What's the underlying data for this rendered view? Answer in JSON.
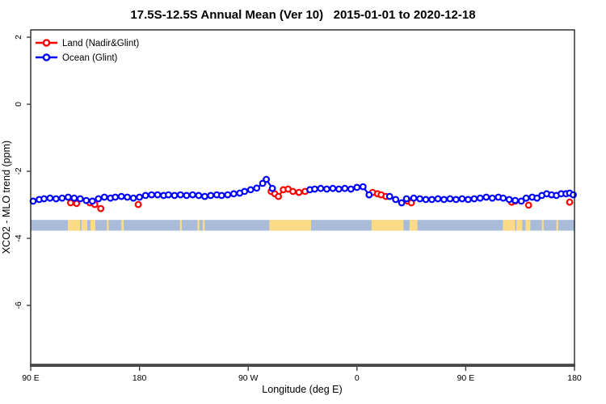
{
  "chart_data": {
    "type": "line",
    "title": "17.5S-12.5S Annual Mean (Ver 10)   2015-01-01 to 2020-12-18",
    "xlabel": "Longitude (deg E)",
    "ylabel": "XCO2 - MLO trend (ppm)",
    "x_axis": {
      "range": [
        90,
        540
      ],
      "ticks": [
        90,
        180,
        270,
        360,
        450,
        540
      ],
      "tick_labels": [
        "90 E",
        "180",
        "90 W",
        "0",
        "90 E",
        "180"
      ],
      "note": "longitude axis wraps: 90E to 180 to 90W to 0 to 90E to 180"
    },
    "y_axis": {
      "range": [
        -7.8,
        2.2
      ],
      "ticks": [
        2,
        0,
        -2,
        -4,
        -6
      ],
      "tick_labels": [
        "2",
        "0",
        "-2",
        "-4",
        "-6"
      ]
    },
    "grid": false,
    "legend_position": "top-left",
    "legend": {
      "items": [
        {
          "label": "Land (Nadir&Glint)",
          "color": "#ff0000"
        },
        {
          "label": "Ocean (Glint)",
          "color": "#0000ff"
        }
      ]
    },
    "series": [
      {
        "name": "Land (Nadir&Glint)",
        "color": "#ff0000",
        "groups": [
          [
            [
              123,
              -2.94
            ],
            [
              128,
              -2.96
            ]
          ],
          [
            [
              139,
              -2.94
            ],
            [
              143,
              -2.99
            ],
            [
              148,
              -3.11
            ]
          ],
          [
            [
              179,
              -2.99
            ]
          ],
          [
            [
              289,
              -2.6
            ],
            [
              292,
              -2.67
            ],
            [
              295,
              -2.75
            ],
            [
              299,
              -2.55
            ],
            [
              303,
              -2.53
            ],
            [
              307,
              -2.6
            ],
            [
              312,
              -2.63
            ],
            [
              317,
              -2.6
            ]
          ],
          [
            [
              373,
              -2.63
            ],
            [
              377,
              -2.67
            ],
            [
              380,
              -2.7
            ],
            [
              384,
              -2.75
            ]
          ],
          [
            [
              402,
              -2.89
            ],
            [
              405,
              -2.94
            ]
          ],
          [
            [
              488,
              -2.92
            ],
            [
              491,
              -2.89
            ]
          ],
          [
            [
              502,
              -3.01
            ]
          ],
          [
            [
              536,
              -2.92
            ]
          ]
        ]
      },
      {
        "name": "Ocean (Glint)",
        "color": "#0000ff",
        "groups": [
          [
            [
              92,
              -2.89
            ],
            [
              97,
              -2.84
            ],
            [
              101,
              -2.82
            ],
            [
              106,
              -2.8
            ],
            [
              111,
              -2.82
            ],
            [
              116,
              -2.8
            ],
            [
              121,
              -2.77
            ],
            [
              126,
              -2.8
            ],
            [
              131,
              -2.82
            ],
            [
              136,
              -2.87
            ],
            [
              141,
              -2.89
            ],
            [
              146,
              -2.82
            ],
            [
              151,
              -2.77
            ],
            [
              156,
              -2.8
            ],
            [
              160,
              -2.77
            ],
            [
              165,
              -2.75
            ],
            [
              170,
              -2.77
            ],
            [
              175,
              -2.8
            ],
            [
              180,
              -2.77
            ],
            [
              185,
              -2.72
            ],
            [
              190,
              -2.7
            ],
            [
              195,
              -2.7
            ],
            [
              200,
              -2.72
            ],
            [
              204,
              -2.7
            ],
            [
              209,
              -2.72
            ],
            [
              214,
              -2.7
            ],
            [
              219,
              -2.72
            ],
            [
              224,
              -2.7
            ],
            [
              229,
              -2.72
            ],
            [
              234,
              -2.75
            ],
            [
              239,
              -2.72
            ],
            [
              244,
              -2.7
            ],
            [
              248,
              -2.72
            ],
            [
              253,
              -2.7
            ],
            [
              258,
              -2.67
            ],
            [
              263,
              -2.65
            ],
            [
              267,
              -2.6
            ],
            [
              272,
              -2.55
            ],
            [
              277,
              -2.5
            ],
            [
              282,
              -2.36
            ],
            [
              285,
              -2.24
            ],
            [
              290,
              -2.51
            ]
          ],
          [
            [
              321,
              -2.55
            ],
            [
              325,
              -2.53
            ],
            [
              330,
              -2.51
            ],
            [
              335,
              -2.53
            ],
            [
              340,
              -2.51
            ],
            [
              345,
              -2.53
            ],
            [
              350,
              -2.51
            ],
            [
              355,
              -2.53
            ],
            [
              360,
              -2.48
            ],
            [
              365,
              -2.46
            ],
            [
              370,
              -2.7
            ]
          ],
          [
            [
              387,
              -2.75
            ],
            [
              392,
              -2.84
            ],
            [
              397,
              -2.94
            ],
            [
              401,
              -2.82
            ],
            [
              407,
              -2.8
            ],
            [
              412,
              -2.82
            ],
            [
              417,
              -2.84
            ],
            [
              422,
              -2.84
            ],
            [
              427,
              -2.82
            ],
            [
              432,
              -2.84
            ],
            [
              437,
              -2.82
            ],
            [
              442,
              -2.84
            ],
            [
              447,
              -2.82
            ],
            [
              452,
              -2.84
            ],
            [
              457,
              -2.82
            ],
            [
              462,
              -2.8
            ],
            [
              467,
              -2.77
            ],
            [
              472,
              -2.8
            ],
            [
              477,
              -2.77
            ],
            [
              481,
              -2.8
            ],
            [
              486,
              -2.84
            ],
            [
              491,
              -2.87
            ],
            [
              496,
              -2.89
            ],
            [
              500,
              -2.8
            ],
            [
              505,
              -2.77
            ],
            [
              509,
              -2.8
            ],
            [
              513,
              -2.72
            ],
            [
              517,
              -2.67
            ],
            [
              521,
              -2.7
            ],
            [
              525,
              -2.72
            ],
            [
              529,
              -2.67
            ],
            [
              533,
              -2.67
            ],
            [
              536,
              -2.65
            ],
            [
              539,
              -2.7
            ]
          ]
        ]
      }
    ],
    "map_band": {
      "description": "land/ocean strip for latitude band 17.5S-12.5S",
      "ocean_color": "#a8bcd9",
      "land_color": "#fcdb87",
      "value_top": -3.45,
      "value_bottom": -3.77,
      "land_segments": [
        [
          120.8,
          130.8
        ],
        [
          132,
          136.8
        ],
        [
          139.5,
          143.5
        ],
        [
          153,
          154.5
        ],
        [
          165,
          167
        ],
        [
          213.5,
          215
        ],
        [
          228,
          229.5
        ],
        [
          232.5,
          234
        ],
        [
          287.5,
          322
        ],
        [
          372,
          398.5
        ],
        [
          403.5,
          410
        ],
        [
          480.8,
          490.8
        ],
        [
          492,
          496.8
        ],
        [
          499.5,
          503.5
        ],
        [
          513,
          514.5
        ],
        [
          525,
          526.5
        ]
      ]
    }
  }
}
